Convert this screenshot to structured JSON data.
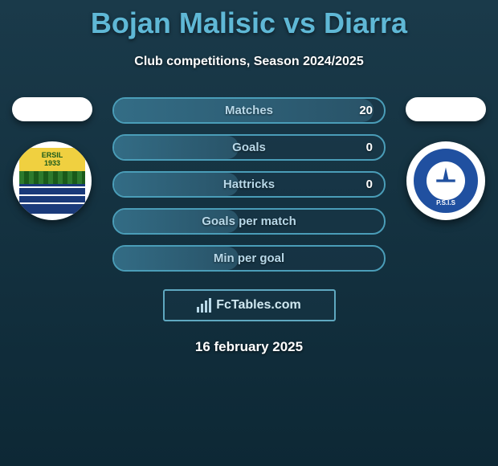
{
  "title": "Bojan Malisic vs Diarra",
  "subtitle": "Club competitions, Season 2024/2025",
  "player_left": {
    "team_badge_text_top": "ERSIL",
    "team_badge_year": "1933"
  },
  "player_right": {
    "team_badge_text": "P.S.I.S"
  },
  "stats": [
    {
      "label": "Matches",
      "value_right": "20",
      "fill_pct": 96
    },
    {
      "label": "Goals",
      "value_right": "0",
      "fill_pct": 46
    },
    {
      "label": "Hattricks",
      "value_right": "0",
      "fill_pct": 46
    },
    {
      "label": "Goals per match",
      "value_right": "",
      "fill_pct": 46
    },
    {
      "label": "Min per goal",
      "value_right": "",
      "fill_pct": 46
    }
  ],
  "brand": {
    "text": "FcTables.com"
  },
  "date": "16 february 2025",
  "colors": {
    "title_color": "#5fb8d6",
    "bar_border": "#4a9db8",
    "bg_gradient_start": "#1a3a4a",
    "bg_gradient_end": "#0d2835"
  }
}
